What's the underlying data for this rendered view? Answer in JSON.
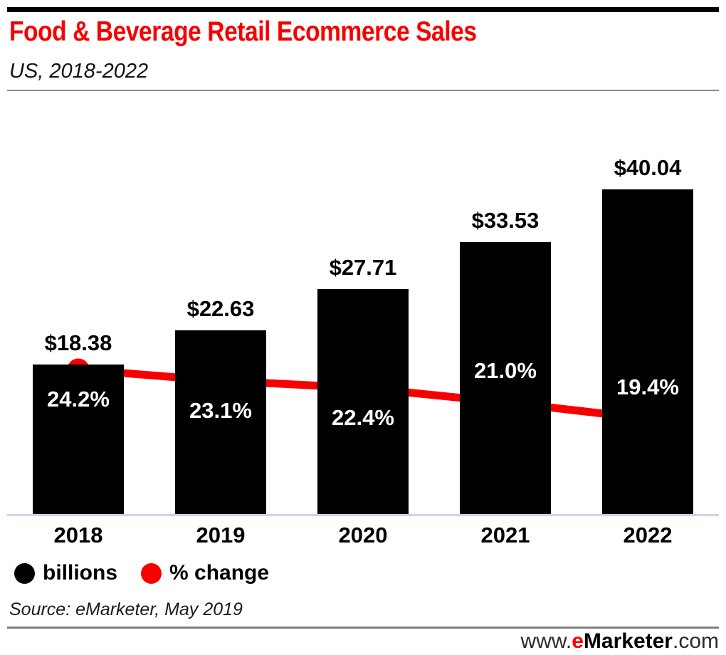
{
  "header": {
    "title": "Food & Beverage Retail Ecommerce Sales",
    "subtitle": "US, 2018-2022"
  },
  "chart_data": [
    {
      "type": "bar",
      "name": "billions",
      "categories": [
        "2018",
        "2019",
        "2020",
        "2021",
        "2022"
      ],
      "values": [
        18.38,
        22.63,
        27.71,
        33.53,
        40.04
      ],
      "labels": [
        "$18.38",
        "$22.63",
        "$27.71",
        "$33.53",
        "$40.04"
      ],
      "color": "#000000",
      "ylim": [
        0,
        52
      ],
      "grid": false,
      "value_labels_position": "above-bar"
    },
    {
      "type": "line",
      "name": "% change",
      "categories": [
        "2018",
        "2019",
        "2020",
        "2021",
        "2022"
      ],
      "values": [
        24.2,
        23.1,
        22.4,
        21.0,
        19.4
      ],
      "labels": [
        "24.2%",
        "23.1%",
        "22.4%",
        "21.0%",
        "19.4%"
      ],
      "label_placement": [
        "below",
        "below",
        "below",
        "above",
        "above"
      ],
      "color": "#f70000",
      "marker": "circle"
    }
  ],
  "legend": {
    "position": "bottom-left",
    "items": [
      {
        "label": "billions",
        "color": "#000000",
        "marker": "circle"
      },
      {
        "label": "% change",
        "color": "#f70000",
        "marker": "circle"
      }
    ]
  },
  "source": "Source: eMarketer, May 2019",
  "footer": {
    "www": "www.",
    "e": "e",
    "brand": "Marketer",
    "com": ".com"
  },
  "colors": {
    "title_red": "#f70000",
    "line_red": "#f70000",
    "bar_black": "#000000",
    "baseline_light": "#ccd5e6",
    "divider_gray": "#8c8c8c",
    "top_bar_black": "#000000"
  }
}
